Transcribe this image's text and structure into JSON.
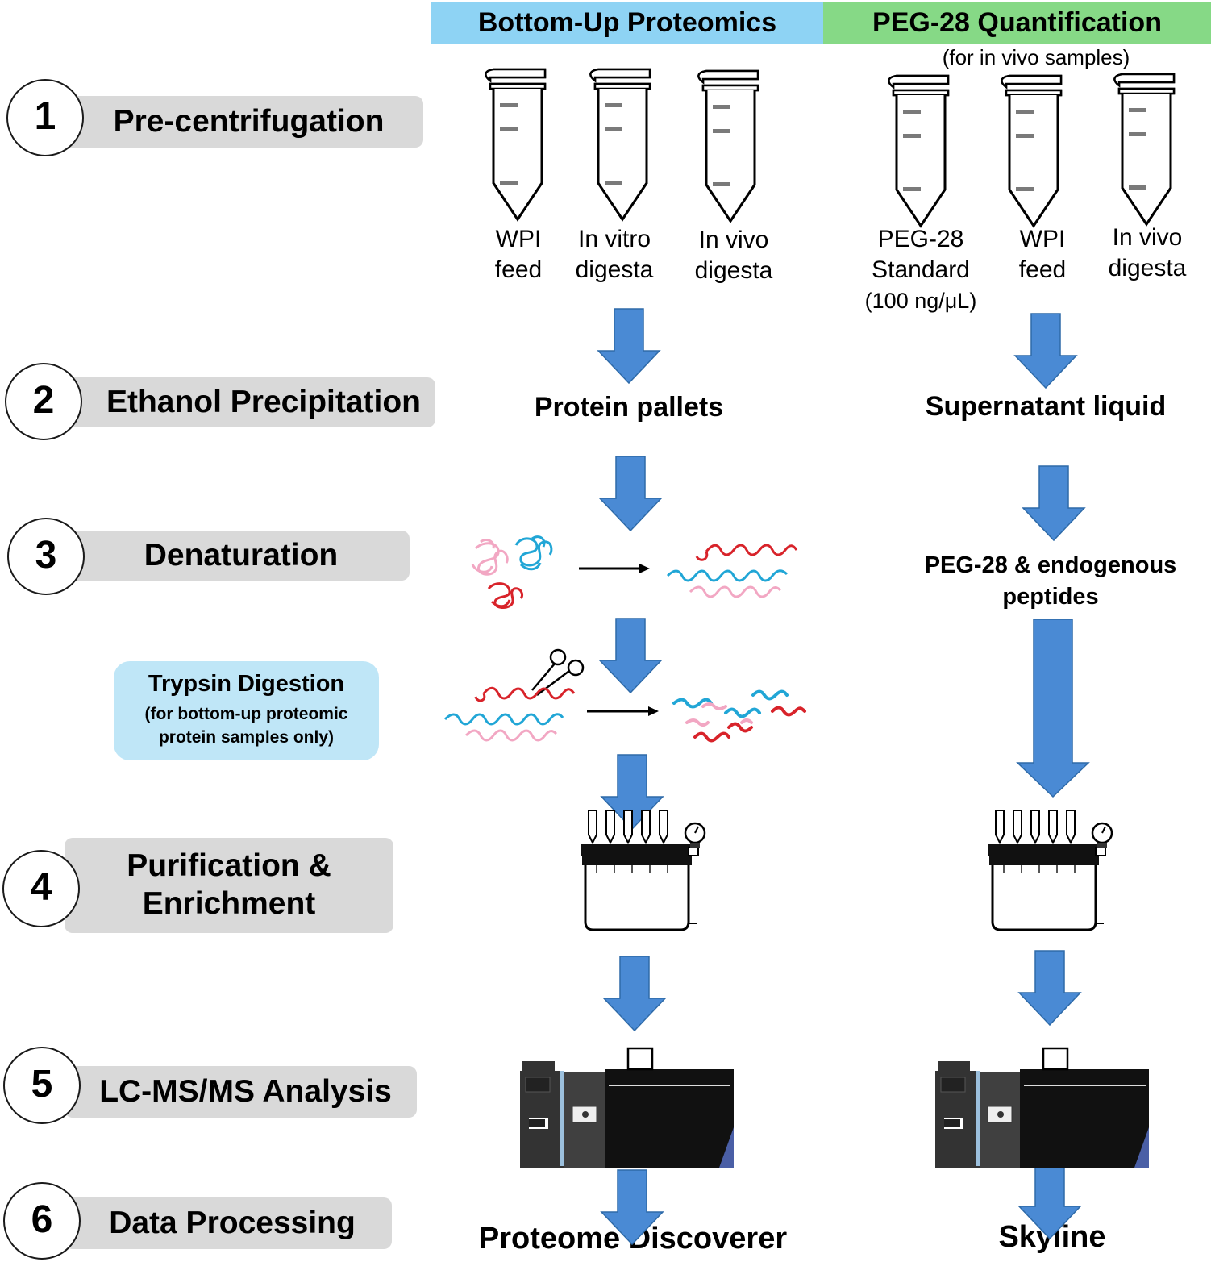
{
  "headers": {
    "bottom_up": "Bottom-Up Proteomics",
    "peg28": "PEG-28 Quantification",
    "peg28_note": "(for in vivo samples)",
    "bottom_up_color": "#8ed3f4",
    "peg28_color": "#86d986"
  },
  "steps": [
    {
      "number": "1",
      "label": "Pre-centrifugation"
    },
    {
      "number": "2",
      "label": "Ethanol Precipitation"
    },
    {
      "number": "3",
      "label": "Denaturation"
    },
    {
      "number": "4",
      "label": "Purification & Enrichment"
    },
    {
      "number": "5",
      "label": "LC-MS/MS Analysis"
    },
    {
      "number": "6",
      "label": "Data Processing"
    }
  ],
  "trypsin": {
    "title": "Trypsin Digestion",
    "note": "(for bottom-up proteomic protein samples only)"
  },
  "bottom_up": {
    "samples": [
      {
        "line1": "WPI",
        "line2": "feed"
      },
      {
        "line1": "In vitro",
        "line2": "digesta"
      },
      {
        "line1": "In vivo",
        "line2": "digesta"
      }
    ],
    "precipitation_product": "Protein pallets",
    "software": "Proteome Discoverer"
  },
  "peg28": {
    "samples": [
      {
        "line1": "PEG-28",
        "line2": "Standard",
        "line3": "(100 ng/μL)"
      },
      {
        "line1": "WPI",
        "line2": "feed"
      },
      {
        "line1": "In vivo",
        "line2": "digesta"
      }
    ],
    "precipitation_product": "Supernatant liquid",
    "denaturation_product": "PEG-28 & endogenous peptides",
    "software": "Skyline"
  },
  "colors": {
    "arrow": "#4a8ad4",
    "step_box": "#d9d9d9",
    "tube_liquid_blue": "#a8dcef",
    "tube_liquid_beige": "#f3d3a8",
    "tube_liquid_green": "#9ccc2c",
    "tube_liquid_light": "#cfe9f6",
    "protein_red": "#d8232a",
    "protein_blue": "#21a6d6",
    "protein_pink": "#f2a7c3"
  }
}
